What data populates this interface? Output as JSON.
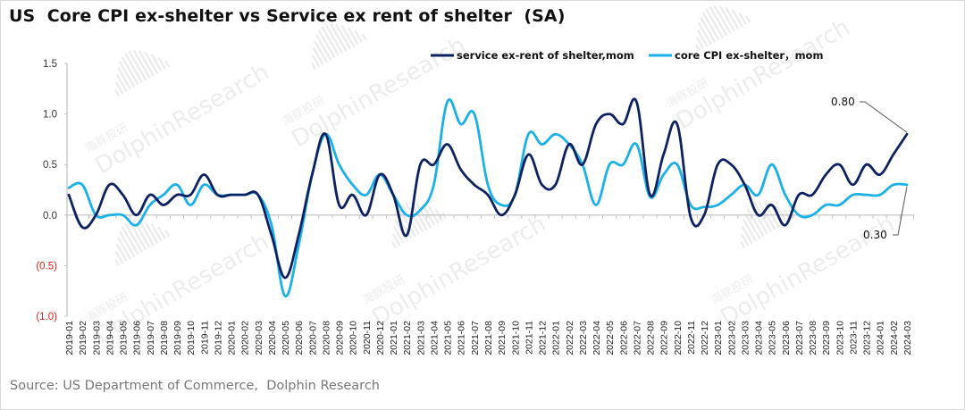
{
  "title": "US  Core CPI ex-shelter vs Service ex rent of shelter  (SA)",
  "source": "Source: US Department of Commerce,  Dolphin Research",
  "watermark": {
    "brand": "DolphinResearch",
    "cn": "海豚投研"
  },
  "colors": {
    "service": "#0d2260",
    "core": "#1ab0e8",
    "axis": "#bfbfbf",
    "negative_label": "#e02020"
  },
  "chart_data": {
    "type": "line",
    "title": "US  Core CPI ex-shelter vs Service ex rent of shelter  (SA)",
    "xlabel": "",
    "ylabel": "",
    "ylim": [
      -1.0,
      1.5
    ],
    "yticks": [
      1.5,
      1.0,
      0.5,
      0.0,
      -0.5,
      -1.0
    ],
    "ytick_labels": [
      "1.5",
      "1.0",
      "0.5",
      "0.0",
      "(0.5)",
      "(1.0)"
    ],
    "grid": false,
    "legend": "top-center",
    "x": [
      "2019-01",
      "2019-02",
      "2019-03",
      "2019-04",
      "2019-05",
      "2019-06",
      "2019-07",
      "2019-08",
      "2019-09",
      "2019-10",
      "2019-11",
      "2019-12",
      "2020-01",
      "2020-02",
      "2020-03",
      "2020-04",
      "2020-05",
      "2020-06",
      "2020-07",
      "2020-08",
      "2020-09",
      "2020-10",
      "2020-11",
      "2020-12",
      "2021-01",
      "2021-02",
      "2021-03",
      "2021-04",
      "2021-05",
      "2021-06",
      "2021-07",
      "2021-08",
      "2021-09",
      "2021-10",
      "2021-11",
      "2021-12",
      "2022-01",
      "2022-02",
      "2022-03",
      "2022-04",
      "2022-05",
      "2022-06",
      "2022-07",
      "2022-08",
      "2022-09",
      "2022-10",
      "2022-11",
      "2022-12",
      "2023-01",
      "2023-02",
      "2023-03",
      "2023-04",
      "2023-05",
      "2023-06",
      "2023-07",
      "2023-08",
      "2023-09",
      "2023-10",
      "2023-11",
      "2023-12",
      "2024-01",
      "2024-02",
      "2024-03"
    ],
    "series": [
      {
        "name": "service ex-rent of shelter,mom",
        "color": "#0d2260",
        "values": [
          0.2,
          -0.12,
          0.0,
          0.3,
          0.2,
          0.0,
          0.2,
          0.1,
          0.2,
          0.2,
          0.4,
          0.2,
          0.2,
          0.2,
          0.2,
          -0.2,
          -0.62,
          -0.2,
          0.4,
          0.8,
          0.1,
          0.2,
          0.0,
          0.4,
          0.2,
          -0.2,
          0.5,
          0.5,
          0.7,
          0.45,
          0.3,
          0.2,
          0.0,
          0.2,
          0.6,
          0.3,
          0.3,
          0.7,
          0.5,
          0.9,
          1.0,
          0.9,
          1.12,
          0.2,
          0.6,
          0.9,
          -0.02,
          0.0,
          0.5,
          0.5,
          0.3,
          0.0,
          0.1,
          -0.1,
          0.2,
          0.2,
          0.4,
          0.5,
          0.3,
          0.5,
          0.4,
          0.6,
          0.8
        ]
      },
      {
        "name": "core CPI ex-shelter，mom",
        "color": "#1ab0e8",
        "values": [
          0.27,
          0.3,
          0.0,
          0.0,
          0.0,
          -0.1,
          0.1,
          0.2,
          0.3,
          0.1,
          0.3,
          0.2,
          0.2,
          0.2,
          0.2,
          -0.1,
          -0.8,
          -0.3,
          0.4,
          0.8,
          0.5,
          0.3,
          0.2,
          0.4,
          0.2,
          0.0,
          0.05,
          0.3,
          1.12,
          0.9,
          1.0,
          0.3,
          0.1,
          0.2,
          0.8,
          0.7,
          0.8,
          0.7,
          0.5,
          0.1,
          0.5,
          0.5,
          0.7,
          0.18,
          0.4,
          0.5,
          0.1,
          0.08,
          0.1,
          0.2,
          0.3,
          0.2,
          0.5,
          0.2,
          0.0,
          0.0,
          0.1,
          0.1,
          0.2,
          0.2,
          0.2,
          0.3,
          0.3
        ]
      }
    ],
    "annotations": [
      {
        "text": "0.80",
        "series": "service ex-rent of shelter,mom",
        "x": "2024-03",
        "value": 0.8
      },
      {
        "text": "0.30",
        "series": "core CPI ex-shelter，mom",
        "x": "2024-03",
        "value": 0.3
      }
    ]
  }
}
